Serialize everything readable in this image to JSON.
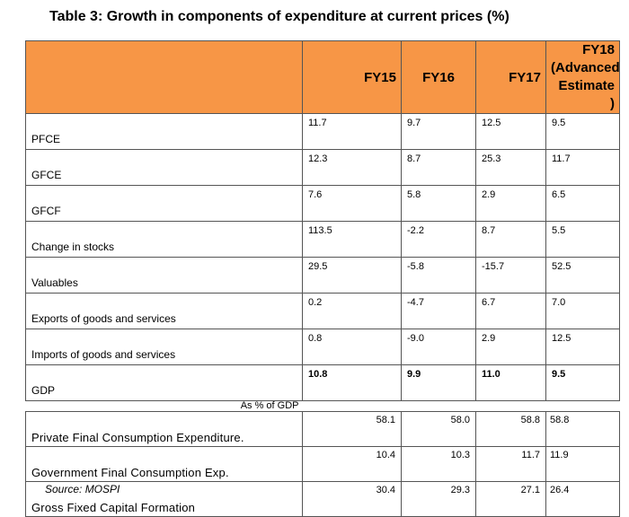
{
  "title": "Table 3: Growth in components of expenditure at current prices (%)",
  "columns": [
    "FY15",
    "FY16",
    "FY17",
    "FY18 (Advanced Estimate )"
  ],
  "columns_last_lines": [
    "FY18",
    "(Advanced",
    "Estimate )"
  ],
  "growth_rows": [
    {
      "label": "PFCE",
      "values": [
        "11.7",
        "9.7",
        "12.5",
        "9.5"
      ]
    },
    {
      "label": "GFCE",
      "values": [
        "12.3",
        "8.7",
        "25.3",
        "11.7"
      ]
    },
    {
      "label": "GFCF",
      "values": [
        "7.6",
        "5.8",
        "2.9",
        "6.5"
      ]
    },
    {
      "label": "Change in stocks",
      "values": [
        "113.5",
        "-2.2",
        "8.7",
        "5.5"
      ]
    },
    {
      "label": "Valuables",
      "values": [
        "29.5",
        "-5.8",
        "-15.7",
        "52.5"
      ]
    },
    {
      "label": "Exports of goods and  services",
      "values": [
        "0.2",
        "-4.7",
        "6.7",
        "7.0"
      ]
    },
    {
      "label": "Imports of goods and  services",
      "values": [
        "0.8",
        "-9.0",
        "2.9",
        "12.5"
      ]
    },
    {
      "label": "GDP",
      "values": [
        "10.8",
        "9.9",
        "11.0",
        "9.5"
      ]
    }
  ],
  "share_note": "As % of GDP",
  "share_rows": [
    {
      "label": "Private Final Consumption Expenditure.",
      "values": [
        "58.1",
        "58.0",
        "58.8",
        "58.8"
      ]
    },
    {
      "label": "Government Final Consumption Exp.",
      "values": [
        "10.4",
        "10.3",
        "11.7",
        "11.9"
      ]
    },
    {
      "label": "Gross Fixed Capital Formation",
      "values": [
        "30.4",
        "29.3",
        "27.1",
        "26.4"
      ]
    }
  ],
  "source": "Source: MOSPI"
}
